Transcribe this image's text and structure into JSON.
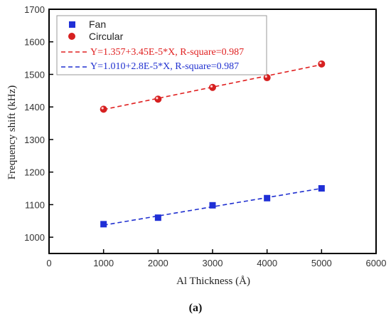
{
  "chart_data": {
    "type": "scatter",
    "xlabel": "Al Thickness (Å)",
    "ylabel": "Frequency shift (kHz)",
    "xlim": [
      0,
      6000
    ],
    "ylim": [
      950,
      1700
    ],
    "xticks": [
      0,
      1000,
      2000,
      3000,
      4000,
      5000,
      6000
    ],
    "yticks": [
      1000,
      1100,
      1200,
      1300,
      1400,
      1500,
      1600,
      1700
    ],
    "grid": false,
    "legend_position": "top-left",
    "series": [
      {
        "name": "Fan",
        "marker": "square",
        "color": "#1f2fd6",
        "x": [
          1000,
          2000,
          3000,
          4000,
          5000
        ],
        "y": [
          1040,
          1060,
          1098,
          1120,
          1150
        ]
      },
      {
        "name": "Circular",
        "marker": "circle",
        "color": "#d62020",
        "x": [
          1000,
          2000,
          3000,
          4000,
          5000
        ],
        "y": [
          1393,
          1424,
          1460,
          1490,
          1532
        ]
      }
    ],
    "fits": [
      {
        "label": "Y=1.357+3.45E-5*X, R-square=0.987",
        "color": "#e02020",
        "x": [
          1000,
          5000
        ],
        "y": [
          1392,
          1530
        ]
      },
      {
        "label": "Y=1.010+2.8E-5*X, R-square=0.987",
        "color": "#2030d0",
        "x": [
          1000,
          5000
        ],
        "y": [
          1037,
          1150
        ]
      }
    ]
  },
  "caption": "(a)"
}
